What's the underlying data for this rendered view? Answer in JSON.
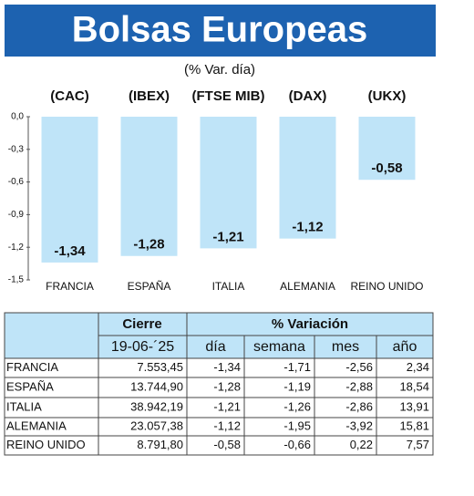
{
  "chart_data": {
    "type": "bar",
    "title": "Bolsas Europeas",
    "subtitle": "(% Var. día)",
    "categories": [
      "FRANCIA",
      "ESPAÑA",
      "ITALIA",
      "ALEMANIA",
      "REINO UNIDO"
    ],
    "index_codes": [
      "(CAC)",
      "(IBEX)",
      "(FTSE MIB)",
      "(DAX)",
      "(UKX)"
    ],
    "values": [
      -1.34,
      -1.28,
      -1.21,
      -1.12,
      -0.58
    ],
    "value_labels": [
      "-1,34",
      "-1,28",
      "-1,21",
      "-1,12",
      "-0,58"
    ],
    "color": "#bfe4f8",
    "ylim": [
      -1.5,
      0
    ],
    "yticks": [
      {
        "value": 0,
        "label": "0,0"
      },
      {
        "value": -0.3,
        "label": "-0,3"
      },
      {
        "value": -0.6,
        "label": "-0,6"
      },
      {
        "value": -0.9,
        "label": "-0,9"
      },
      {
        "value": -1.2,
        "label": "-1,2"
      },
      {
        "value": -1.5,
        "label": "-1,5"
      }
    ]
  },
  "table": {
    "header": [
      "Cierre",
      "% Variación"
    ],
    "subheader": [
      "19-06-´25",
      "día",
      "semana",
      "mes",
      "año"
    ],
    "rows": [
      [
        "FRANCIA",
        "7.553,45",
        "-1,34",
        "-1,71",
        "-2,56",
        "2,34"
      ],
      [
        "ESPAÑA",
        "13.744,90",
        "-1,28",
        "-1,19",
        "-2,88",
        "18,54"
      ],
      [
        "ITALIA",
        "38.942,19",
        "-1,21",
        "-1,26",
        "-2,86",
        "13,91"
      ],
      [
        "ALEMANIA",
        "23.057,38",
        "-1,12",
        "-1,95",
        "-3,92",
        "15,81"
      ],
      [
        "REINO UNIDO",
        "8.791,80",
        "-0,58",
        "-0,66",
        "0,22",
        "7,57"
      ]
    ]
  }
}
